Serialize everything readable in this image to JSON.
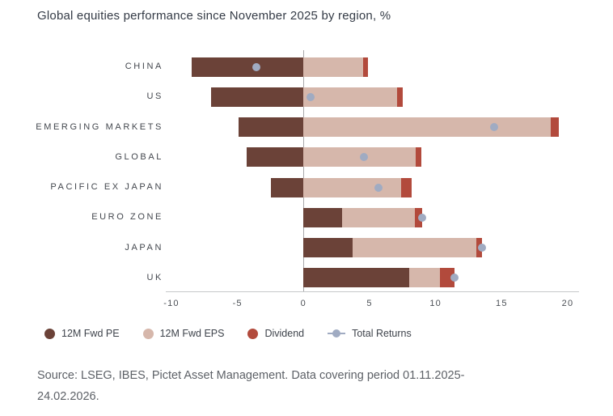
{
  "title": "Global equities performance since November 2025 by region, %",
  "chart_data": {
    "type": "bar",
    "orientation": "horizontal",
    "stacked": true,
    "title": "Global equities performance since November 2025 by region, %",
    "categories": [
      "CHINA",
      "US",
      "EMERGING MARKETS",
      "GLOBAL",
      "PACIFIC EX JAPAN",
      "EURO ZONE",
      "JAPAN",
      "UK"
    ],
    "series": [
      {
        "name": "12M Fwd PE",
        "color": "#6b4238",
        "values": [
          -8.5,
          -7.0,
          -4.9,
          -4.3,
          -2.5,
          2.9,
          3.7,
          8.0
        ]
      },
      {
        "name": "12M Fwd EPS",
        "color": "#d6b7ab",
        "values": [
          4.5,
          7.1,
          18.7,
          8.5,
          7.4,
          5.5,
          9.4,
          2.3
        ]
      },
      {
        "name": "Dividend",
        "color": "#b24a3c",
        "values": [
          0.4,
          0.4,
          0.6,
          0.4,
          0.8,
          0.6,
          0.4,
          1.1
        ]
      }
    ],
    "markers": {
      "name": "Total Returns",
      "color": "#a0abc2",
      "values": [
        -3.6,
        0.5,
        14.4,
        4.6,
        5.7,
        9.0,
        13.5,
        11.4
      ]
    },
    "x_ticks": [
      "-10",
      "-5",
      "0",
      "5",
      "10",
      "15",
      "20"
    ],
    "xlim": [
      -10,
      20
    ],
    "xlabel": "",
    "ylabel": "",
    "grid": "zero-line-only",
    "legend_position": "bottom"
  },
  "legend": {
    "items": [
      {
        "label": "12M Fwd PE",
        "color": "#6b4238",
        "marker": "circle"
      },
      {
        "label": "12M Fwd EPS",
        "color": "#d6b7ab",
        "marker": "circle"
      },
      {
        "label": "Dividend",
        "color": "#b24a3c",
        "marker": "circle"
      },
      {
        "label": "Total Returns",
        "color": "#a0abc2",
        "marker": "dot-line"
      }
    ]
  },
  "source": {
    "line1": "Source: LSEG, IBES, Pictet Asset Management. Data covering period 01.11.2025-",
    "line2": "24.02.2026."
  },
  "colors": {
    "pe": "#6b4238",
    "eps": "#d6b7ab",
    "dividend": "#b24a3c",
    "total_returns_dot": "#a0abc2",
    "title_text": "#343b46",
    "axis_text": "#4b4f55",
    "source_text": "#5d6167"
  }
}
